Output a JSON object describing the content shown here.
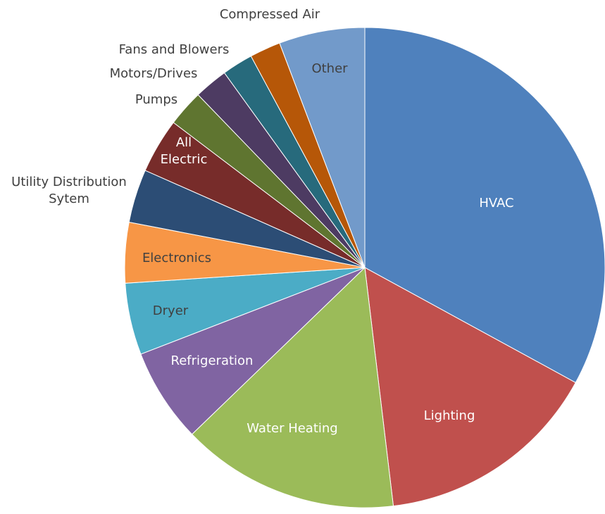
{
  "chart_data": {
    "type": "pie",
    "title": "",
    "start_angle_deg": 0,
    "direction": "clockwise",
    "slices": [
      {
        "label": "HVAC",
        "value": 34.8,
        "color": "#4F81BD",
        "label_color": "#ffffff",
        "label_lines": [
          "HVAC"
        ]
      },
      {
        "label": "Lighting",
        "value": 16.0,
        "color": "#C0504D",
        "label_color": "#ffffff",
        "label_lines": [
          "Lighting"
        ]
      },
      {
        "label": "Water Heating",
        "value": 15.5,
        "color": "#9BBB59",
        "label_color": "#ffffff",
        "label_lines": [
          "Water Heating"
        ]
      },
      {
        "label": "Refrigeration",
        "value": 6.7,
        "color": "#8064A2",
        "label_color": "#ffffff",
        "label_lines": [
          "Refrigeration"
        ]
      },
      {
        "label": "Dryer",
        "value": 5.1,
        "color": "#4BACC6",
        "label_color": "#404040",
        "label_lines": [
          "Dryer"
        ]
      },
      {
        "label": "Electronics",
        "value": 4.3,
        "color": "#F79646",
        "label_color": "#404040",
        "label_lines": [
          "Electronics"
        ]
      },
      {
        "label": "Utility Distribution Sytem",
        "value": 3.8,
        "color": "#2C4D75",
        "label_color": "#404040",
        "label_lines": [
          "Utility Distribution",
          "Sytem"
        ]
      },
      {
        "label": "All Electric",
        "value": 3.9,
        "color": "#772C2A",
        "label_color": "#ffffff",
        "label_lines": [
          "All",
          "Electric"
        ]
      },
      {
        "label": "Pumps",
        "value": 2.6,
        "color": "#5F7530",
        "label_color": "#404040",
        "label_lines": [
          "Pumps"
        ]
      },
      {
        "label": "Motors/Drives",
        "value": 2.4,
        "color": "#4D3B62",
        "label_color": "#404040",
        "label_lines": [
          "Motors/Drives"
        ]
      },
      {
        "label": "Fans and Blowers",
        "value": 2.2,
        "color": "#276A7C",
        "label_color": "#404040",
        "label_lines": [
          "Fans and Blowers"
        ]
      },
      {
        "label": "Compressed Air",
        "value": 2.2,
        "color": "#B65708",
        "label_color": "#404040",
        "label_lines": [
          "Compressed Air"
        ]
      },
      {
        "label": "Other",
        "value": 6.1,
        "color": "#729ACA",
        "label_color": "#404040",
        "label_lines": [
          "Other"
        ]
      }
    ]
  }
}
